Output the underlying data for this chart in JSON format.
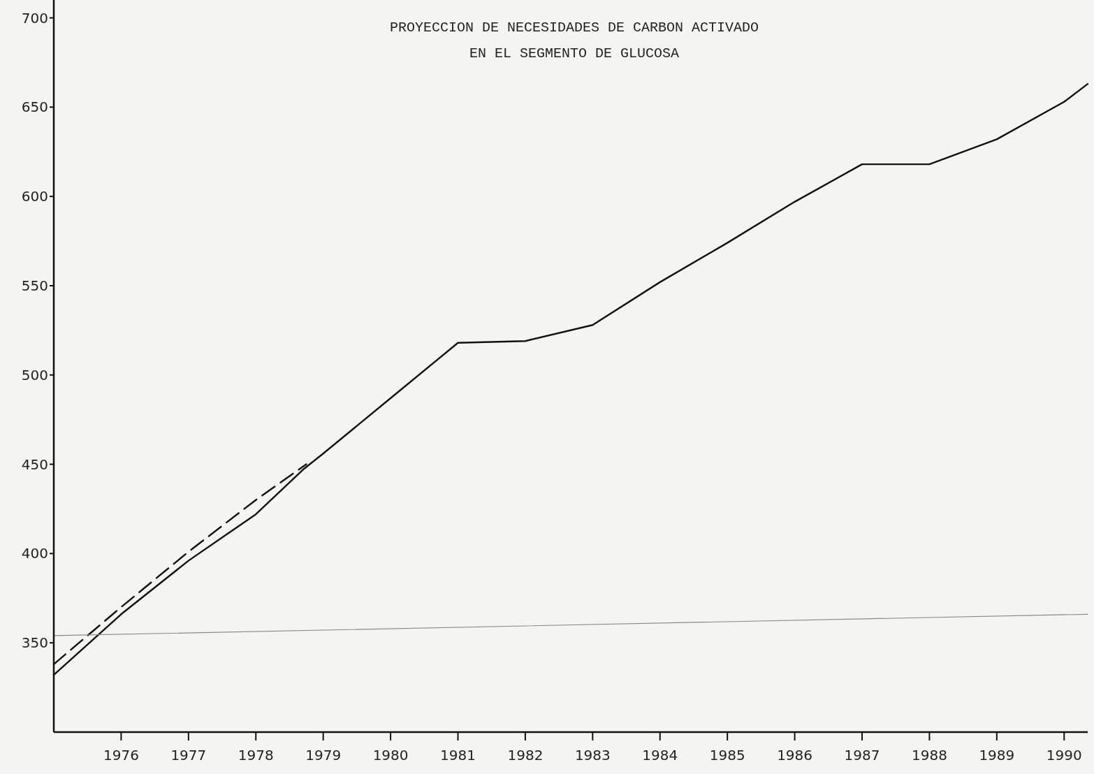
{
  "chart_data": {
    "type": "line",
    "title": "PROYECCION DE NECESIDADES DE CARBON ACTIVADO\nEN EL SEGMENTO DE GLUCOSA",
    "xlim": [
      1975,
      1990.35
    ],
    "xticks": [
      1976,
      1977,
      1978,
      1979,
      1980,
      1981,
      1982,
      1983,
      1984,
      1985,
      1986,
      1987,
      1988,
      1989,
      1990
    ],
    "ylim": [
      300,
      710
    ],
    "yticks": [
      350,
      400,
      450,
      500,
      550,
      600,
      650,
      700
    ],
    "grid": false,
    "series": [
      {
        "color": "#111111",
        "line_style": "solid",
        "x": [
          1975,
          1976,
          1977,
          1978,
          1978.7,
          1979,
          1980,
          1981,
          1982,
          1983,
          1984,
          1985,
          1986,
          1987,
          1988,
          1989,
          1990,
          1990.35
        ],
        "values": [
          332,
          366,
          396,
          422,
          447,
          456,
          487,
          518,
          519,
          528,
          552,
          574,
          597,
          618,
          618,
          632,
          653,
          663
        ]
      },
      {
        "color": "#111111",
        "line_style": "dashed",
        "x": [
          1975,
          1976,
          1977,
          1978,
          1978.75
        ],
        "values": [
          338,
          370,
          401,
          430,
          450
        ]
      },
      {
        "color": "#888888",
        "line_style": "solid",
        "x": [
          1975,
          1990.35
        ],
        "values": [
          354,
          366
        ]
      }
    ]
  }
}
